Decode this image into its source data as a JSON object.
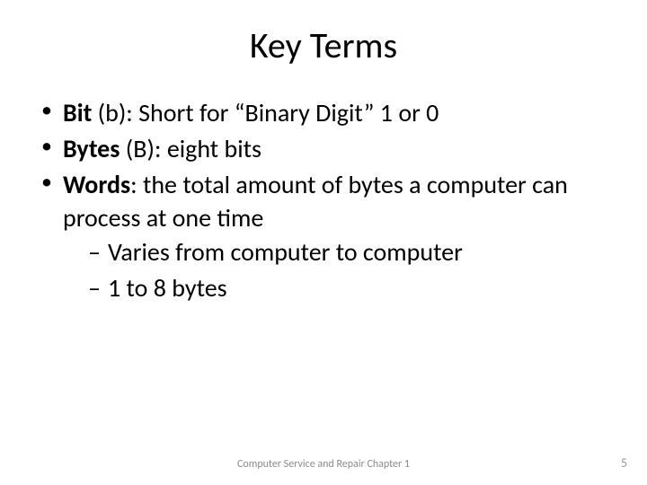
{
  "title": "Key Terms",
  "title_fontsize": 40,
  "body_fontsize": 28,
  "text_color": "#000000",
  "background_color": "#ffffff",
  "footer_color": "#8c8c8c",
  "pagenum_color": "#9a9a9a",
  "bullets": [
    {
      "term": "Bit",
      "def": " (b): Short for “Binary Digit” 1 or 0"
    },
    {
      "term": "Bytes",
      "def": " (B): eight bits"
    },
    {
      "term": "Words",
      "def": ": the total amount of bytes a computer can process at one time",
      "subs": [
        "Varies from computer to computer",
        "1 to 8 bytes"
      ]
    }
  ],
  "footer": {
    "center": "Computer Service and Repair Chapter 1",
    "page": "5"
  }
}
